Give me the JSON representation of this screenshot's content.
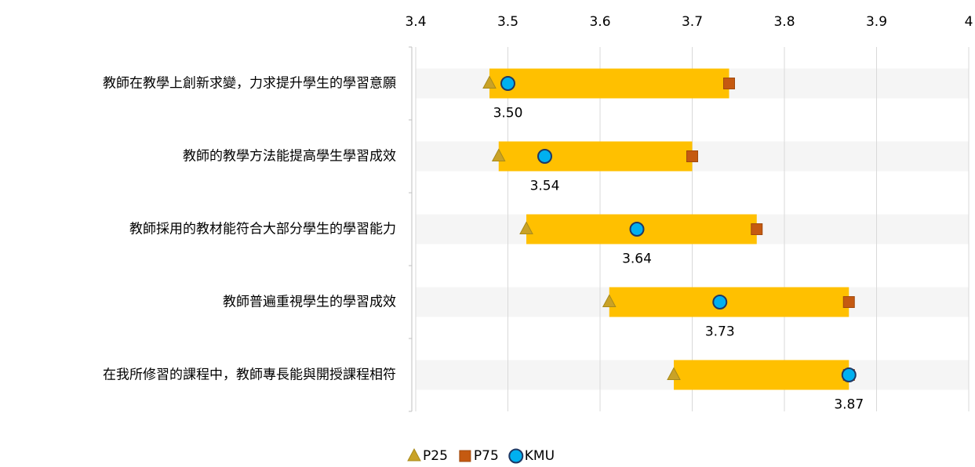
{
  "chart_data": {
    "type": "range",
    "categories": [
      "教師在教學上創新求變，力求提升學生的學習意願",
      "教師的教學方法能提高學生學習成效",
      "教師採用的教材能符合大部分學生的學習能力",
      "教師普遍重視學生的學習成效",
      "在我所修習的課程中，教師專長能與開授課程相符"
    ],
    "series": [
      {
        "name": "P25",
        "color": "#c9a227",
        "values": [
          3.48,
          3.49,
          3.52,
          3.61,
          3.68
        ]
      },
      {
        "name": "P75",
        "color": "#c55a11",
        "values": [
          3.74,
          3.7,
          3.77,
          3.87,
          3.87
        ]
      },
      {
        "name": "KMU",
        "color": "#00b0f0",
        "values": [
          3.5,
          3.54,
          3.64,
          3.73,
          3.87
        ],
        "value_labels": [
          "3.50",
          "3.54",
          "3.64",
          "3.73",
          "3.87"
        ]
      }
    ],
    "bar_color": "#ffc000",
    "xlim": [
      3.4,
      4
    ],
    "xticks": [
      3.4,
      3.5,
      3.6,
      3.7,
      3.8,
      3.9,
      4
    ],
    "grid": true,
    "legend": "bottom"
  }
}
